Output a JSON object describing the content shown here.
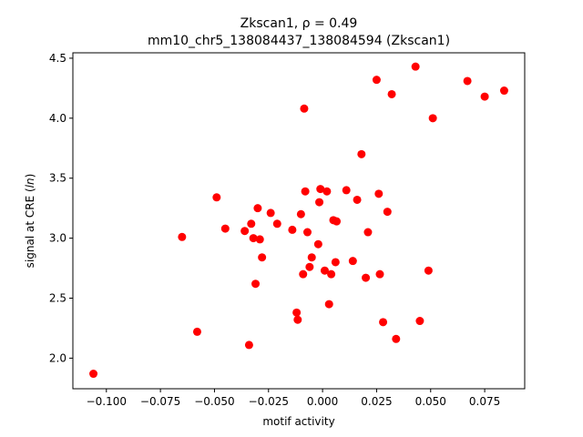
{
  "chart_data": {
    "type": "scatter",
    "title_line1": "Zkscan1, ρ = 0.49",
    "title_line2": "mm10_chr5_138084437_138084594 (Zkscan1)",
    "xlabel": "motif activity",
    "ylabel_prefix": "signal at CRE (",
    "ylabel_italic": "ln",
    "ylabel_suffix": ")",
    "xlim": [
      -0.1155,
      0.0935
    ],
    "ylim": [
      1.745,
      4.545
    ],
    "xticks": [
      -0.1,
      -0.075,
      -0.05,
      -0.025,
      0.0,
      0.025,
      0.05,
      0.075
    ],
    "xtick_labels": [
      "−0.100",
      "−0.075",
      "−0.050",
      "−0.025",
      "0.000",
      "0.025",
      "0.050",
      "0.075"
    ],
    "yticks": [
      2.0,
      2.5,
      3.0,
      3.5,
      4.0,
      4.5
    ],
    "ytick_labels": [
      "2.0",
      "2.5",
      "3.0",
      "3.5",
      "4.0",
      "4.5"
    ],
    "grid": false,
    "marker_color": "#ff0000",
    "points": [
      {
        "x": -0.106,
        "y": 1.87
      },
      {
        "x": -0.065,
        "y": 3.01
      },
      {
        "x": -0.058,
        "y": 2.22
      },
      {
        "x": -0.049,
        "y": 3.34
      },
      {
        "x": -0.045,
        "y": 3.08
      },
      {
        "x": -0.036,
        "y": 3.06
      },
      {
        "x": -0.034,
        "y": 2.11
      },
      {
        "x": -0.033,
        "y": 3.12
      },
      {
        "x": -0.032,
        "y": 3.0
      },
      {
        "x": -0.031,
        "y": 2.62
      },
      {
        "x": -0.03,
        "y": 3.25
      },
      {
        "x": -0.029,
        "y": 2.99
      },
      {
        "x": -0.028,
        "y": 2.84
      },
      {
        "x": -0.024,
        "y": 3.21
      },
      {
        "x": -0.021,
        "y": 3.12
      },
      {
        "x": -0.014,
        "y": 3.07
      },
      {
        "x": -0.012,
        "y": 2.38
      },
      {
        "x": -0.0115,
        "y": 2.32
      },
      {
        "x": -0.01,
        "y": 3.2
      },
      {
        "x": -0.009,
        "y": 2.7
      },
      {
        "x": -0.0085,
        "y": 4.08
      },
      {
        "x": -0.008,
        "y": 3.39
      },
      {
        "x": -0.007,
        "y": 3.05
      },
      {
        "x": -0.006,
        "y": 2.76
      },
      {
        "x": -0.005,
        "y": 2.84
      },
      {
        "x": -0.002,
        "y": 2.95
      },
      {
        "x": -0.0015,
        "y": 3.3
      },
      {
        "x": -0.001,
        "y": 3.41
      },
      {
        "x": 0.001,
        "y": 2.73
      },
      {
        "x": 0.002,
        "y": 3.39
      },
      {
        "x": 0.003,
        "y": 2.45
      },
      {
        "x": 0.004,
        "y": 2.7
      },
      {
        "x": 0.005,
        "y": 3.15
      },
      {
        "x": 0.006,
        "y": 2.8
      },
      {
        "x": 0.0065,
        "y": 3.14
      },
      {
        "x": 0.011,
        "y": 3.4
      },
      {
        "x": 0.014,
        "y": 2.81
      },
      {
        "x": 0.016,
        "y": 3.32
      },
      {
        "x": 0.018,
        "y": 3.7
      },
      {
        "x": 0.02,
        "y": 2.67
      },
      {
        "x": 0.021,
        "y": 3.05
      },
      {
        "x": 0.025,
        "y": 4.32
      },
      {
        "x": 0.026,
        "y": 3.37
      },
      {
        "x": 0.0265,
        "y": 2.7
      },
      {
        "x": 0.028,
        "y": 2.3
      },
      {
        "x": 0.03,
        "y": 3.22
      },
      {
        "x": 0.032,
        "y": 4.2
      },
      {
        "x": 0.034,
        "y": 2.16
      },
      {
        "x": 0.043,
        "y": 4.43
      },
      {
        "x": 0.045,
        "y": 2.31
      },
      {
        "x": 0.049,
        "y": 2.73
      },
      {
        "x": 0.051,
        "y": 4.0
      },
      {
        "x": 0.067,
        "y": 4.31
      },
      {
        "x": 0.075,
        "y": 4.18
      },
      {
        "x": 0.084,
        "y": 4.23
      }
    ]
  }
}
